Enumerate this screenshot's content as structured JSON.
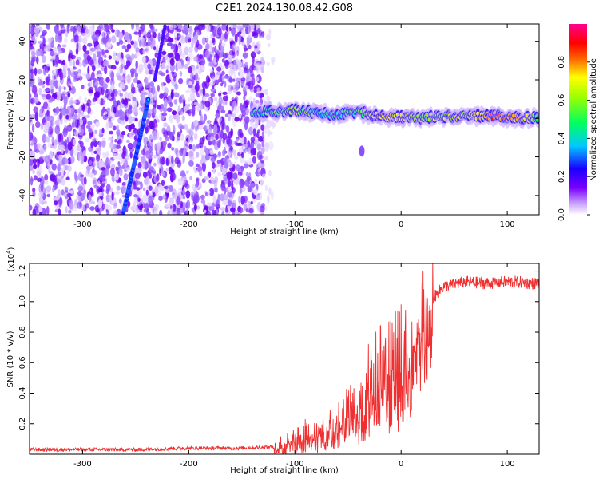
{
  "title": "C2E1.2024.130.08.42.G08",
  "chart_data": [
    {
      "type": "heatmap",
      "xlabel": "Height of straight line (km)",
      "ylabel": "Frequency (Hz)",
      "xlim": [
        -350,
        130
      ],
      "ylim": [
        -50,
        49
      ],
      "xticks": [
        -300,
        -200,
        -100,
        0,
        100
      ],
      "yticks": [
        -40,
        -20,
        0,
        20,
        40
      ],
      "grid": false,
      "colorbar": {
        "label": "Normalized spectral amplitude",
        "range": [
          0.0,
          1.0
        ],
        "ticks": [
          "0.0",
          "0.2",
          "0.4",
          "0.6",
          "0.8"
        ],
        "colors": [
          "#ffffff",
          "#7b00ff",
          "#0000ff",
          "#00e5ff",
          "#00ff00",
          "#ffff00",
          "#ff0000",
          "#ff00aa"
        ]
      },
      "features": {
        "noise_region_x": [
          -350,
          -130
        ],
        "noise_fade_end_x": -120,
        "chirp_line": {
          "x": [
            -262,
            -238
          ],
          "y": [
            -50,
            10
          ]
        },
        "secondary_streak": {
          "x": [
            -232,
            -222
          ],
          "y": [
            20,
            49
          ]
        },
        "signal_band": {
          "x": [
            -140,
            -100,
            -80,
            -60,
            -40,
            -20,
            0,
            20,
            60,
            90,
            110,
            130
          ],
          "y": [
            3,
            4,
            3,
            2,
            3,
            1,
            0.5,
            0.5,
            1,
            1.5,
            0,
            0.5
          ],
          "peak": [
            0.55,
            0.75,
            0.6,
            0.6,
            0.65,
            0.85,
            0.8,
            0.7,
            0.75,
            0.95,
            0.9,
            0.6
          ]
        },
        "blip": {
          "x": -37,
          "y": -17
        }
      }
    },
    {
      "type": "line",
      "xlabel": "Height of straight line (km)",
      "ylabel": "SNR (10 * v/v)",
      "yscale_label": "(x10",
      "yscale_exponent": "4",
      "yscale_close": ")",
      "xlim": [
        -350,
        130
      ],
      "ylim": [
        0,
        1.25
      ],
      "xticks": [
        -300,
        -200,
        -100,
        0,
        100
      ],
      "yticks": [
        0.2,
        0.4,
        0.6,
        0.8,
        1.0,
        1.2
      ],
      "color": "#f03030",
      "series": [
        {
          "x": [
            -350,
            -300,
            -250,
            -200,
            -150,
            -120,
            -110,
            -100,
            -90,
            -80,
            -70,
            -60,
            -50,
            -40,
            -30,
            -20,
            -10,
            0,
            10,
            20,
            30,
            40,
            60,
            80,
            100,
            110,
            120,
            130
          ],
          "y": [
            0.03,
            0.03,
            0.03,
            0.04,
            0.04,
            0.05,
            0.07,
            0.11,
            0.13,
            0.12,
            0.18,
            0.23,
            0.27,
            0.33,
            0.45,
            0.52,
            0.55,
            0.62,
            0.7,
            0.88,
            1.02,
            1.1,
            1.13,
            1.12,
            1.13,
            1.13,
            1.12,
            1.12
          ]
        }
      ]
    }
  ]
}
